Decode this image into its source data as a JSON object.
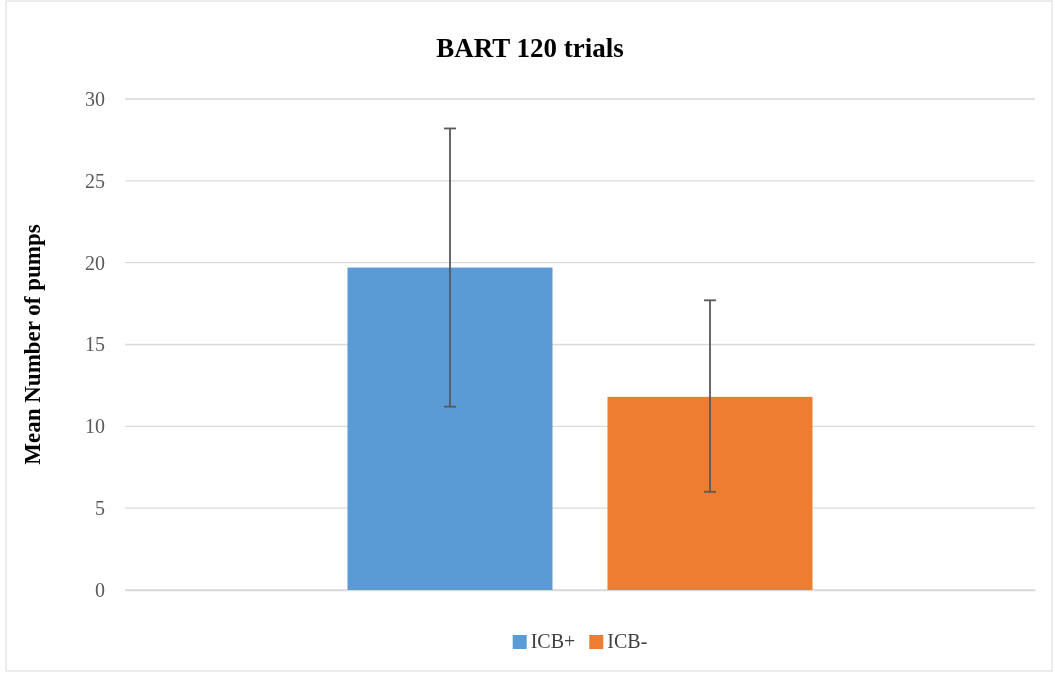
{
  "chart_data": {
    "type": "bar",
    "title": "BART 120 trials",
    "ylabel": "Mean Number of pumps",
    "categories": [
      null
    ],
    "series": [
      {
        "name": "ICB+",
        "color": "#5b9bd5",
        "values": [
          19.7
        ],
        "errors": [
          [
            11.2,
            28.2
          ]
        ]
      },
      {
        "name": "ICB-",
        "color": "#ed7d31",
        "values": [
          11.8
        ],
        "errors": [
          [
            6.0,
            17.7
          ]
        ]
      }
    ],
    "ylim": [
      0,
      30
    ],
    "yticks": [
      0,
      5,
      10,
      15,
      20,
      25,
      30
    ],
    "grid": "y",
    "legend": "bottom"
  }
}
